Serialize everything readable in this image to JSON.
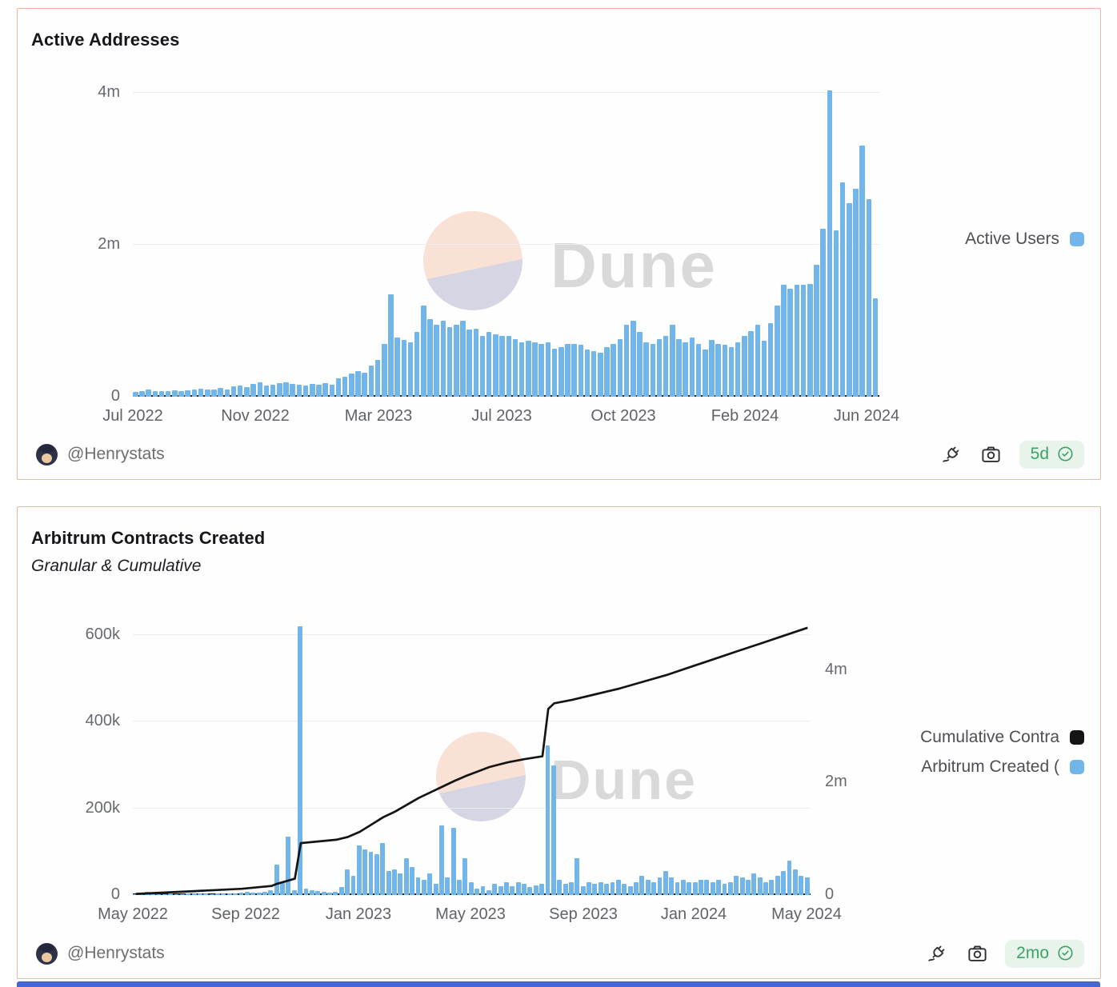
{
  "watermark": {
    "text": "Dune"
  },
  "colors": {
    "bar_blue": "#72b6e9",
    "line_black": "#141414",
    "card_border": "#f2b5a0",
    "badge_bg": "#e7f3eb",
    "badge_green": "#3ca266",
    "watermark_peach": "#f9e2d5",
    "watermark_lavender": "#d5d5e4",
    "bottom_strip_blue": "#4466d8"
  },
  "cards": [
    {
      "author": "@Henrystats",
      "age": "5d",
      "icons": [
        "plug-icon",
        "camera-icon",
        "verified-seal-icon"
      ]
    },
    {
      "author": "@Henrystats",
      "age": "2mo",
      "icons": [
        "plug-icon",
        "camera-icon",
        "verified-seal-icon"
      ]
    }
  ],
  "chart_data": [
    {
      "id": "active-addresses",
      "type": "bar",
      "title": "Active Addresses",
      "x_unit": "week",
      "x_ticks": [
        "Jul 2022",
        "Nov 2022",
        "Mar 2023",
        "Jul 2023",
        "Oct 2023",
        "Feb 2024",
        "Jun 2024"
      ],
      "y_ticks": [
        "0",
        "2m",
        "4m"
      ],
      "ylabel": "",
      "xlabel": "",
      "ylim_millions": [
        0,
        4.0
      ],
      "grid": "horizontal",
      "legend": [
        {
          "label": "Active Users",
          "color": "#72b6e9"
        }
      ],
      "legend_position": "right",
      "values_millions": [
        0.06,
        0.07,
        0.09,
        0.07,
        0.07,
        0.07,
        0.08,
        0.07,
        0.08,
        0.1,
        0.11,
        0.09,
        0.1,
        0.12,
        0.1,
        0.14,
        0.15,
        0.13,
        0.17,
        0.19,
        0.15,
        0.16,
        0.18,
        0.19,
        0.17,
        0.16,
        0.15,
        0.17,
        0.16,
        0.18,
        0.16,
        0.24,
        0.26,
        0.31,
        0.34,
        0.32,
        0.41,
        0.48,
        0.7,
        1.35,
        0.78,
        0.75,
        0.72,
        0.85,
        1.2,
        1.02,
        0.95,
        1.0,
        0.92,
        0.95,
        1.0,
        0.88,
        0.9,
        0.8,
        0.85,
        0.82,
        0.8,
        0.8,
        0.76,
        0.72,
        0.74,
        0.72,
        0.7,
        0.72,
        0.63,
        0.65,
        0.7,
        0.7,
        0.68,
        0.62,
        0.6,
        0.58,
        0.65,
        0.7,
        0.76,
        0.95,
        1.0,
        0.85,
        0.72,
        0.7,
        0.76,
        0.8,
        0.95,
        0.76,
        0.72,
        0.78,
        0.7,
        0.62,
        0.75,
        0.7,
        0.68,
        0.65,
        0.72,
        0.8,
        0.86,
        0.95,
        0.74,
        0.97,
        1.2,
        1.47,
        1.42,
        1.47,
        1.47,
        1.48,
        1.74,
        2.21,
        4.03,
        2.19,
        2.82,
        2.55,
        2.74,
        3.31,
        2.6,
        1.29
      ]
    },
    {
      "id": "arbitrum-contracts-created",
      "type": "bar+line",
      "title": "Arbitrum Contracts Created",
      "subtitle": "Granular & Cumulative",
      "x_unit": "week",
      "x_ticks": [
        "May 2022",
        "Sep 2022",
        "Jan 2023",
        "May 2023",
        "Sep 2023",
        "Jan 2024",
        "May 2024"
      ],
      "left_y_ticks": [
        "0",
        "200k",
        "400k",
        "600k"
      ],
      "right_y_ticks": [
        "0",
        "2m",
        "4m"
      ],
      "left_ylim_thousands": [
        0,
        637
      ],
      "right_ylim_millions": [
        0,
        4.9
      ],
      "grid": "horizontal-left-axis",
      "legend": [
        {
          "label": "Cumulative Contra",
          "color": "#141414",
          "series": "line",
          "axis": "right"
        },
        {
          "label": "Arbitrum Created (",
          "color": "#72b6e9",
          "series": "bar",
          "axis": "left"
        }
      ],
      "legend_position": "right",
      "bar_values_thousands": [
        2,
        3,
        8,
        3,
        2,
        2,
        3,
        2,
        2,
        3,
        3,
        4,
        3,
        2,
        3,
        3,
        4,
        3,
        5,
        8,
        6,
        5,
        8,
        12,
        70,
        28,
        135,
        12,
        620,
        15,
        12,
        10,
        8,
        6,
        8,
        18,
        60,
        45,
        115,
        105,
        100,
        95,
        120,
        55,
        60,
        50,
        85,
        65,
        40,
        35,
        50,
        25,
        160,
        40,
        155,
        35,
        85,
        30,
        15,
        20,
        12,
        25,
        20,
        30,
        20,
        30,
        25,
        18,
        22,
        25,
        345,
        300,
        35,
        25,
        30,
        85,
        20,
        30,
        25,
        30,
        25,
        30,
        35,
        25,
        20,
        30,
        45,
        35,
        30,
        40,
        55,
        40,
        30,
        35,
        30,
        30,
        35,
        35,
        30,
        35,
        25,
        30,
        45,
        40,
        35,
        50,
        40,
        30,
        35,
        45,
        55,
        80,
        60,
        45,
        40
      ],
      "line_anchor_points_week_millions": [
        [
          0,
          0.02
        ],
        [
          10,
          0.07
        ],
        [
          18,
          0.11
        ],
        [
          23,
          0.16
        ],
        [
          24,
          0.2
        ],
        [
          26,
          0.26
        ],
        [
          27,
          0.29
        ],
        [
          28,
          0.92
        ],
        [
          31,
          0.95
        ],
        [
          34,
          0.98
        ],
        [
          36,
          1.03
        ],
        [
          38,
          1.12
        ],
        [
          40,
          1.25
        ],
        [
          42,
          1.38
        ],
        [
          44,
          1.48
        ],
        [
          46,
          1.6
        ],
        [
          48,
          1.72
        ],
        [
          50,
          1.82
        ],
        [
          52,
          1.92
        ],
        [
          54,
          2.02
        ],
        [
          56,
          2.11
        ],
        [
          58,
          2.19
        ],
        [
          60,
          2.27
        ],
        [
          63,
          2.35
        ],
        [
          66,
          2.41
        ],
        [
          69,
          2.46
        ],
        [
          70,
          3.3
        ],
        [
          71,
          3.4
        ],
        [
          74,
          3.46
        ],
        [
          78,
          3.56
        ],
        [
          82,
          3.66
        ],
        [
          86,
          3.78
        ],
        [
          90,
          3.9
        ],
        [
          94,
          4.04
        ],
        [
          98,
          4.18
        ],
        [
          102,
          4.32
        ],
        [
          106,
          4.46
        ],
        [
          110,
          4.6
        ],
        [
          114,
          4.74
        ]
      ]
    }
  ]
}
